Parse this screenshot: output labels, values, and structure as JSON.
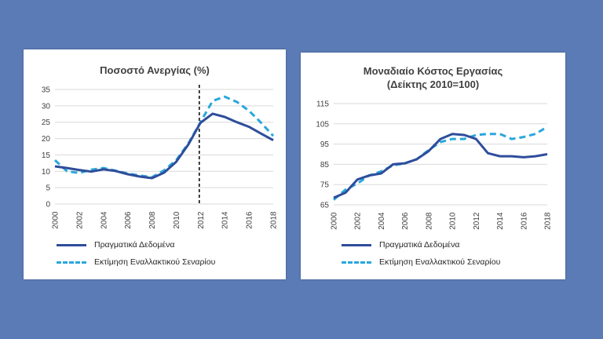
{
  "colors": {
    "background": "#5b7bb6",
    "actual": "#2e4d9b",
    "estimate": "#2aa7dc",
    "grid": "#d9d9d9"
  },
  "chart_data": [
    {
      "type": "line",
      "title": "Ποσοστό Ανεργίας (%)",
      "x": [
        2000,
        2001,
        2002,
        2003,
        2004,
        2005,
        2006,
        2007,
        2008,
        2009,
        2010,
        2011,
        2012,
        2013,
        2014,
        2015,
        2016,
        2017,
        2018
      ],
      "xticks": [
        "2000",
        "2002",
        "2004",
        "2006",
        "2008",
        "2010",
        "2012",
        "2014",
        "2016",
        "2018"
      ],
      "yticks": [
        "0",
        "5",
        "10",
        "15",
        "20",
        "25",
        "30",
        "35"
      ],
      "ylim": [
        0,
        35
      ],
      "grid": true,
      "legend_position": "bottom",
      "vline_at": 2011.9,
      "series": [
        {
          "name": "Πραγματικά Δεδομένα",
          "style": "solid",
          "values": [
            11.5,
            11.0,
            10.4,
            9.9,
            10.6,
            10.1,
            9.1,
            8.4,
            7.9,
            9.6,
            12.9,
            18.2,
            24.8,
            27.6,
            26.6,
            25.0,
            23.6,
            21.5,
            19.5
          ]
        },
        {
          "name": "Εκτίμηση Εναλλακτικού Σεναρίου",
          "style": "dashed",
          "values": [
            13.4,
            10.0,
            9.5,
            10.5,
            11.0,
            10.2,
            9.3,
            8.7,
            8.2,
            10.3,
            13.4,
            18.5,
            25.0,
            31.5,
            32.8,
            31.2,
            28.5,
            24.8,
            20.8
          ]
        }
      ]
    },
    {
      "type": "line",
      "title": "Μοναδιαίο Κόστος Εργασίας",
      "subtitle": "(Δείκτης 2010=100)",
      "x": [
        2000,
        2001,
        2002,
        2003,
        2004,
        2005,
        2006,
        2007,
        2008,
        2009,
        2010,
        2011,
        2012,
        2013,
        2014,
        2015,
        2016,
        2017,
        2018
      ],
      "xticks": [
        "2000",
        "2002",
        "2004",
        "2006",
        "2008",
        "2010",
        "2012",
        "2014",
        "2016",
        "2018"
      ],
      "yticks": [
        "65",
        "75",
        "85",
        "95",
        "105",
        "115"
      ],
      "ylim": [
        65,
        115
      ],
      "grid": true,
      "legend_position": "bottom",
      "series": [
        {
          "name": "Πραγματικά Δεδομένα",
          "style": "solid",
          "values": [
            68.5,
            71.0,
            77.5,
            79.5,
            80.5,
            85.0,
            85.5,
            87.5,
            91.5,
            97.5,
            100.0,
            99.5,
            97.5,
            90.5,
            89.0,
            89.0,
            88.5,
            89.0,
            90.0
          ]
        },
        {
          "name": "Εκτίμηση Εναλλακτικού Σεναρίου",
          "style": "dashed",
          "values": [
            67.5,
            72.5,
            75.5,
            79.5,
            81.5,
            84.5,
            85.5,
            87.5,
            92.0,
            96.0,
            97.5,
            97.5,
            99.5,
            100.0,
            100.0,
            97.5,
            98.5,
            100.0,
            103.5
          ]
        }
      ]
    }
  ]
}
